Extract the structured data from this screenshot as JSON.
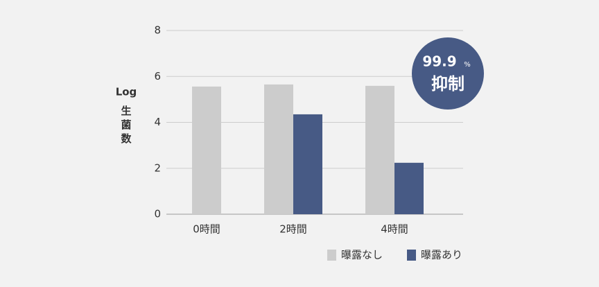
{
  "chart_data": {
    "type": "bar",
    "y_label": [
      "Log",
      "生菌数"
    ],
    "categories": [
      "0時間",
      "2時間",
      "4時間"
    ],
    "series": [
      {
        "name": "曝露なし",
        "color": "#cccccc",
        "values": [
          5.56,
          5.65,
          5.59
        ]
      },
      {
        "name": "曝露あり",
        "color": "#475a85",
        "values": [
          null,
          4.35,
          2.24
        ]
      }
    ],
    "ylim": [
      0,
      8
    ],
    "yticks": [
      0,
      2,
      4,
      6,
      8
    ],
    "grid": true,
    "badge": {
      "value": "99.9",
      "unit": "%",
      "text": "抑制"
    }
  }
}
